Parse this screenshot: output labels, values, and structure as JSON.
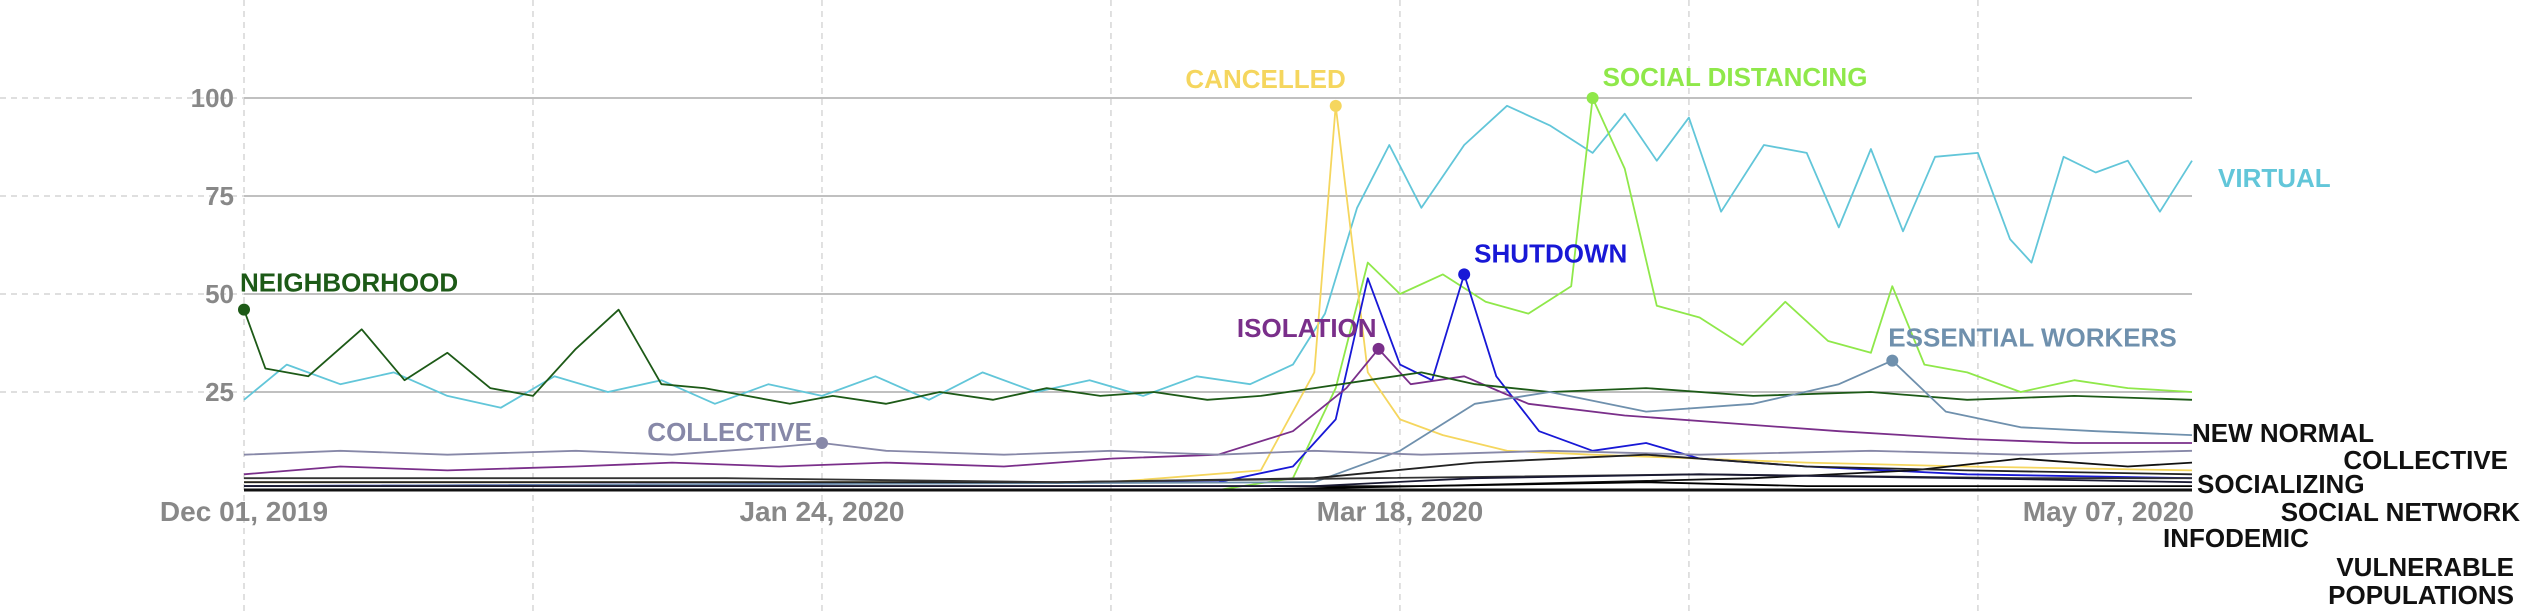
{
  "chart_data": {
    "type": "line",
    "title": "",
    "xlabel": "",
    "ylabel": "",
    "x_range": [
      "2019-12-01",
      "2020-05-31"
    ],
    "xticks": [
      {
        "date": "2019-12-01",
        "label": "Dec 01, 2019"
      },
      {
        "date": "2020-01-24",
        "label": "Jan 24, 2020"
      },
      {
        "date": "2020-03-18",
        "label": "Mar 18, 2020"
      },
      {
        "date": "2020-05-07",
        "label": "May 07, 2020"
      }
    ],
    "ylim": [
      0,
      100
    ],
    "yticks": [
      25,
      50,
      75,
      100
    ],
    "grid": true,
    "series": [
      {
        "name": "VIRTUAL",
        "color": "#62c6d9",
        "label_pos": "end",
        "points": [
          [
            "2019-12-01",
            23
          ],
          [
            "2019-12-05",
            32
          ],
          [
            "2019-12-10",
            27
          ],
          [
            "2019-12-15",
            30
          ],
          [
            "2019-12-20",
            24
          ],
          [
            "2019-12-25",
            21
          ],
          [
            "2019-12-30",
            29
          ],
          [
            "2020-01-04",
            25
          ],
          [
            "2020-01-09",
            28
          ],
          [
            "2020-01-14",
            22
          ],
          [
            "2020-01-19",
            27
          ],
          [
            "2020-01-24",
            24
          ],
          [
            "2020-01-29",
            29
          ],
          [
            "2020-02-03",
            23
          ],
          [
            "2020-02-08",
            30
          ],
          [
            "2020-02-13",
            25
          ],
          [
            "2020-02-18",
            28
          ],
          [
            "2020-02-23",
            24
          ],
          [
            "2020-02-28",
            29
          ],
          [
            "2020-03-04",
            27
          ],
          [
            "2020-03-08",
            32
          ],
          [
            "2020-03-11",
            45
          ],
          [
            "2020-03-14",
            72
          ],
          [
            "2020-03-17",
            88
          ],
          [
            "2020-03-20",
            72
          ],
          [
            "2020-03-24",
            88
          ],
          [
            "2020-03-28",
            98
          ],
          [
            "2020-04-01",
            93
          ],
          [
            "2020-04-05",
            86
          ],
          [
            "2020-04-08",
            96
          ],
          [
            "2020-04-11",
            84
          ],
          [
            "2020-04-14",
            95
          ],
          [
            "2020-04-17",
            71
          ],
          [
            "2020-04-21",
            88
          ],
          [
            "2020-04-25",
            86
          ],
          [
            "2020-04-28",
            67
          ],
          [
            "2020-05-01",
            87
          ],
          [
            "2020-05-04",
            66
          ],
          [
            "2020-05-07",
            85
          ],
          [
            "2020-05-11",
            86
          ],
          [
            "2020-05-14",
            64
          ],
          [
            "2020-05-16",
            58
          ],
          [
            "2020-05-19",
            85
          ],
          [
            "2020-05-22",
            81
          ],
          [
            "2020-05-25",
            84
          ],
          [
            "2020-05-28",
            71
          ],
          [
            "2020-05-31",
            84
          ]
        ]
      },
      {
        "name": "SOCIAL DISTANCING",
        "color": "#8fe84a",
        "label_pos": "peak",
        "points": [
          [
            "2019-12-01",
            0
          ],
          [
            "2020-03-01",
            0
          ],
          [
            "2020-03-08",
            3
          ],
          [
            "2020-03-12",
            26
          ],
          [
            "2020-03-15",
            58
          ],
          [
            "2020-03-18",
            50
          ],
          [
            "2020-03-22",
            55
          ],
          [
            "2020-03-26",
            48
          ],
          [
            "2020-03-30",
            45
          ],
          [
            "2020-04-03",
            52
          ],
          [
            "2020-04-05",
            100
          ],
          [
            "2020-04-08",
            82
          ],
          [
            "2020-04-11",
            47
          ],
          [
            "2020-04-15",
            44
          ],
          [
            "2020-04-19",
            37
          ],
          [
            "2020-04-23",
            48
          ],
          [
            "2020-04-27",
            38
          ],
          [
            "2020-05-01",
            35
          ],
          [
            "2020-05-03",
            52
          ],
          [
            "2020-05-06",
            32
          ],
          [
            "2020-05-10",
            30
          ],
          [
            "2020-05-15",
            25
          ],
          [
            "2020-05-20",
            28
          ],
          [
            "2020-05-25",
            26
          ],
          [
            "2020-05-31",
            25
          ]
        ]
      },
      {
        "name": "CANCELLED",
        "color": "#f5d65e",
        "label_pos": "peak",
        "points": [
          [
            "2019-12-01",
            2
          ],
          [
            "2020-02-20",
            2
          ],
          [
            "2020-03-05",
            5
          ],
          [
            "2020-03-10",
            30
          ],
          [
            "2020-03-12",
            98
          ],
          [
            "2020-03-15",
            30
          ],
          [
            "2020-03-18",
            18
          ],
          [
            "2020-03-22",
            14
          ],
          [
            "2020-03-28",
            10
          ],
          [
            "2020-04-05",
            9
          ],
          [
            "2020-04-15",
            8
          ],
          [
            "2020-04-25",
            7
          ],
          [
            "2020-05-10",
            6
          ],
          [
            "2020-05-31",
            5
          ]
        ]
      },
      {
        "name": "SHUTDOWN",
        "color": "#1818d6",
        "label_pos": "peak",
        "points": [
          [
            "2019-12-01",
            1
          ],
          [
            "2020-03-01",
            2
          ],
          [
            "2020-03-08",
            6
          ],
          [
            "2020-03-12",
            18
          ],
          [
            "2020-03-15",
            54
          ],
          [
            "2020-03-18",
            32
          ],
          [
            "2020-03-21",
            28
          ],
          [
            "2020-03-24",
            55
          ],
          [
            "2020-03-27",
            29
          ],
          [
            "2020-03-31",
            15
          ],
          [
            "2020-04-05",
            10
          ],
          [
            "2020-04-10",
            12
          ],
          [
            "2020-04-15",
            8
          ],
          [
            "2020-04-25",
            6
          ],
          [
            "2020-05-10",
            4
          ],
          [
            "2020-05-31",
            3
          ]
        ]
      },
      {
        "name": "ISOLATION",
        "color": "#7a2f8a",
        "label_pos": "peak",
        "points": [
          [
            "2019-12-01",
            4
          ],
          [
            "2019-12-10",
            6
          ],
          [
            "2019-12-20",
            5
          ],
          [
            "2020-01-01",
            6
          ],
          [
            "2020-01-10",
            7
          ],
          [
            "2020-01-20",
            6
          ],
          [
            "2020-01-30",
            7
          ],
          [
            "2020-02-10",
            6
          ],
          [
            "2020-02-20",
            8
          ],
          [
            "2020-03-01",
            9
          ],
          [
            "2020-03-08",
            15
          ],
          [
            "2020-03-13",
            26
          ],
          [
            "2020-03-16",
            36
          ],
          [
            "2020-03-19",
            27
          ],
          [
            "2020-03-24",
            29
          ],
          [
            "2020-03-30",
            22
          ],
          [
            "2020-04-08",
            19
          ],
          [
            "2020-04-18",
            17
          ],
          [
            "2020-04-28",
            15
          ],
          [
            "2020-05-10",
            13
          ],
          [
            "2020-05-20",
            12
          ],
          [
            "2020-05-31",
            12
          ]
        ]
      },
      {
        "name": "NEIGHBORHOOD",
        "color": "#1d5a17",
        "label_pos": "peak",
        "points": [
          [
            "2019-12-01",
            46
          ],
          [
            "2019-12-03",
            31
          ],
          [
            "2019-12-07",
            29
          ],
          [
            "2019-12-12",
            41
          ],
          [
            "2019-12-16",
            28
          ],
          [
            "2019-12-20",
            35
          ],
          [
            "2019-12-24",
            26
          ],
          [
            "2019-12-28",
            24
          ],
          [
            "2020-01-01",
            36
          ],
          [
            "2020-01-05",
            46
          ],
          [
            "2020-01-09",
            27
          ],
          [
            "2020-01-13",
            26
          ],
          [
            "2020-01-17",
            24
          ],
          [
            "2020-01-21",
            22
          ],
          [
            "2020-01-25",
            24
          ],
          [
            "2020-01-30",
            22
          ],
          [
            "2020-02-04",
            25
          ],
          [
            "2020-02-09",
            23
          ],
          [
            "2020-02-14",
            26
          ],
          [
            "2020-02-19",
            24
          ],
          [
            "2020-02-24",
            25
          ],
          [
            "2020-02-29",
            23
          ],
          [
            "2020-03-05",
            24
          ],
          [
            "2020-03-10",
            26
          ],
          [
            "2020-03-15",
            28
          ],
          [
            "2020-03-20",
            30
          ],
          [
            "2020-03-25",
            27
          ],
          [
            "2020-04-01",
            25
          ],
          [
            "2020-04-10",
            26
          ],
          [
            "2020-04-20",
            24
          ],
          [
            "2020-05-01",
            25
          ],
          [
            "2020-05-10",
            23
          ],
          [
            "2020-05-20",
            24
          ],
          [
            "2020-05-31",
            23
          ]
        ]
      },
      {
        "name": "ESSENTIAL WORKERS",
        "color": "#6f90ad",
        "label_pos": "peak",
        "points": [
          [
            "2019-12-01",
            1
          ],
          [
            "2020-03-10",
            2
          ],
          [
            "2020-03-18",
            10
          ],
          [
            "2020-03-25",
            22
          ],
          [
            "2020-04-01",
            25
          ],
          [
            "2020-04-10",
            20
          ],
          [
            "2020-04-20",
            22
          ],
          [
            "2020-04-28",
            27
          ],
          [
            "2020-05-03",
            33
          ],
          [
            "2020-05-08",
            20
          ],
          [
            "2020-05-15",
            16
          ],
          [
            "2020-05-22",
            15
          ],
          [
            "2020-05-31",
            14
          ]
        ]
      },
      {
        "name": "COLLECTIVE",
        "color": "#8788a8",
        "label_pos": "peak",
        "points": [
          [
            "2019-12-01",
            9
          ],
          [
            "2019-12-10",
            10
          ],
          [
            "2019-12-20",
            9
          ],
          [
            "2020-01-01",
            10
          ],
          [
            "2020-01-10",
            9
          ],
          [
            "2020-01-20",
            11
          ],
          [
            "2020-01-24",
            12
          ],
          [
            "2020-01-30",
            10
          ],
          [
            "2020-02-10",
            9
          ],
          [
            "2020-02-20",
            10
          ],
          [
            "2020-03-01",
            9
          ],
          [
            "2020-03-10",
            10
          ],
          [
            "2020-03-20",
            9
          ],
          [
            "2020-04-01",
            10
          ],
          [
            "2020-04-15",
            9
          ],
          [
            "2020-05-01",
            10
          ],
          [
            "2020-05-15",
            9
          ],
          [
            "2020-05-31",
            10
          ]
        ]
      },
      {
        "name": "NEW NORMAL",
        "color": "#111111",
        "label_pos": "end",
        "points": [
          [
            "2019-12-01",
            1
          ],
          [
            "2020-03-20",
            1
          ],
          [
            "2020-04-05",
            2
          ],
          [
            "2020-04-20",
            3
          ],
          [
            "2020-05-05",
            5
          ],
          [
            "2020-05-15",
            8
          ],
          [
            "2020-05-25",
            6
          ],
          [
            "2020-05-31",
            7
          ]
        ]
      },
      {
        "name": "SOCIALIZING",
        "color": "#222222",
        "label_pos": "end",
        "points": [
          [
            "2019-12-01",
            2
          ],
          [
            "2020-02-15",
            2
          ],
          [
            "2020-03-10",
            3
          ],
          [
            "2020-03-25",
            7
          ],
          [
            "2020-04-10",
            9
          ],
          [
            "2020-04-25",
            6
          ],
          [
            "2020-05-10",
            5
          ],
          [
            "2020-05-31",
            4
          ]
        ]
      },
      {
        "name": "SOCIAL NETWORK",
        "color": "#333333",
        "label_pos": "end",
        "points": [
          [
            "2019-12-01",
            3
          ],
          [
            "2020-01-15",
            3
          ],
          [
            "2020-02-15",
            2
          ],
          [
            "2020-03-15",
            3
          ],
          [
            "2020-04-15",
            4
          ],
          [
            "2020-05-15",
            3
          ],
          [
            "2020-05-31",
            3
          ]
        ]
      },
      {
        "name": "INFODEMIC",
        "color": "#000000",
        "label_pos": "end",
        "points": [
          [
            "2019-12-01",
            0
          ],
          [
            "2020-03-01",
            0
          ],
          [
            "2020-03-20",
            1
          ],
          [
            "2020-04-10",
            2
          ],
          [
            "2020-04-25",
            1
          ],
          [
            "2020-05-31",
            1
          ]
        ]
      },
      {
        "name": "VULNERABLE POPULATIONS",
        "color": "#1a1a33",
        "label_pos": "end",
        "points": [
          [
            "2019-12-01",
            1
          ],
          [
            "2020-03-10",
            1
          ],
          [
            "2020-03-25",
            3
          ],
          [
            "2020-04-15",
            4
          ],
          [
            "2020-05-10",
            3
          ],
          [
            "2020-05-31",
            2
          ]
        ]
      }
    ],
    "end_labels": [
      {
        "name": "VIRTUAL",
        "lines": [
          "VIRTUAL"
        ],
        "color": "#62c6d9"
      },
      {
        "name": "NEW NORMAL",
        "lines": [
          "NEW NORMAL"
        ],
        "color": "#111111"
      },
      {
        "name": "COLLECTIVE",
        "lines": [
          "COLLECTIVE"
        ],
        "color": "#111111"
      },
      {
        "name": "SOCIALIZING",
        "lines": [
          "SOCIALIZING"
        ],
        "color": "#111111"
      },
      {
        "name": "SOCIAL NETWORK",
        "lines": [
          "SOCIAL NETWORK"
        ],
        "color": "#111111"
      },
      {
        "name": "INFODEMIC",
        "lines": [
          "INFODEMIC"
        ],
        "color": "#111111"
      },
      {
        "name": "VULNERABLE POPULATIONS",
        "lines": [
          "VULNERABLE",
          "POPULATIONS"
        ],
        "color": "#111111"
      }
    ]
  }
}
